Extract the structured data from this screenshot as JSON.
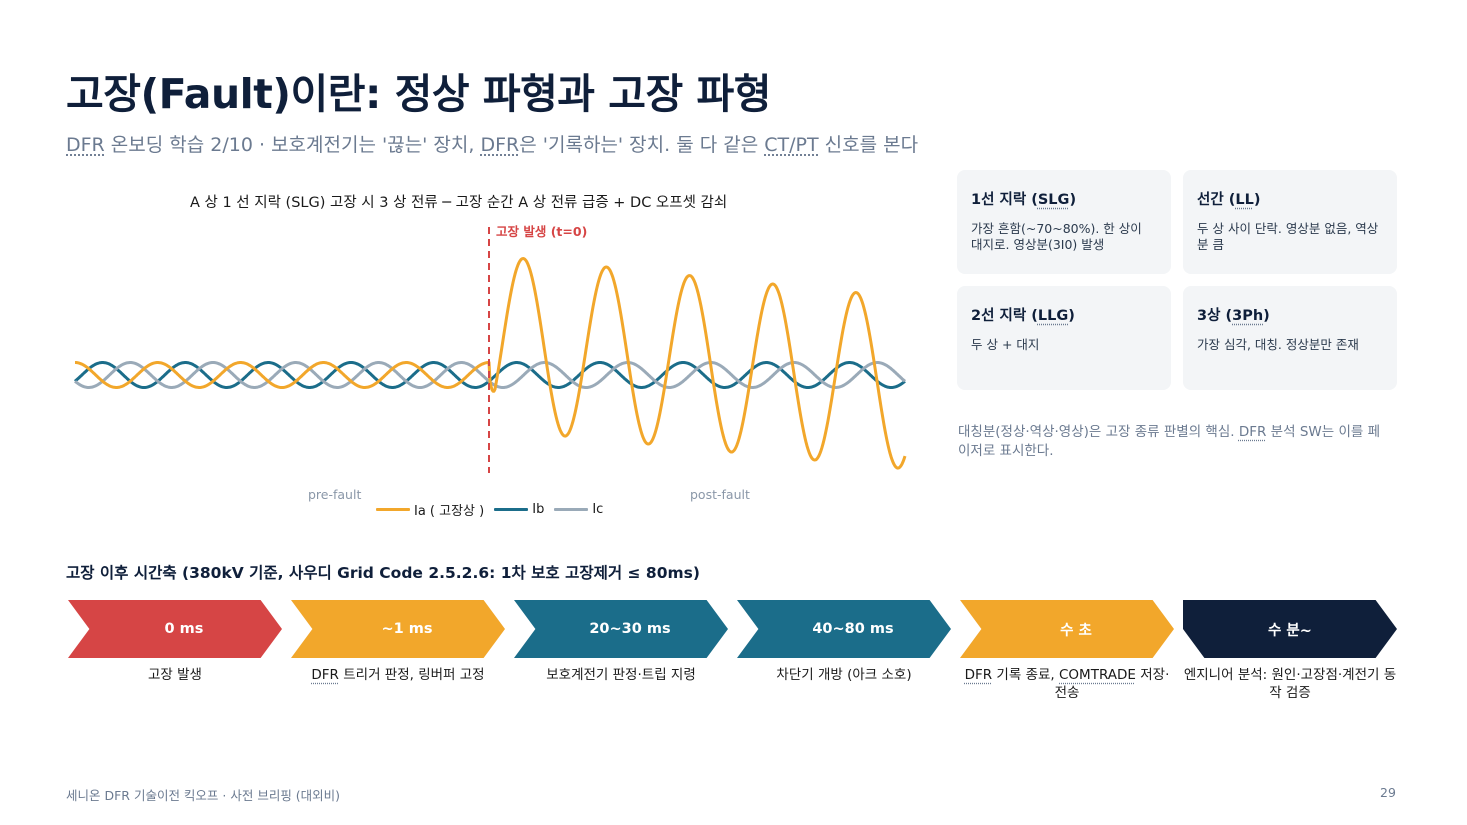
{
  "title": "고장(Fault)이란: 정상 파형과 고장 파형",
  "subtitle": {
    "dfr1": "DFR",
    "part1": " 온보딩 학습 2/10 · 보호계전기는 '끊는' 장치, ",
    "dfr2": "DFR",
    "part2": "은 '기록하는' 장치. 둘 다 같은 ",
    "ctpt": "CT/PT",
    "part3": " 신호를 본다"
  },
  "chart": {
    "title": "A 상  1 선 지락 (SLG)  고장 시  3 상 전류 ─ 고장 순간  A 상 전류 급증  + DC  오프셋 감쇠",
    "fault_label": "고장 발생 (t=0)",
    "pre_label": "pre-fault",
    "post_label": "post-fault",
    "legend": [
      "Ia ( 고장상 )",
      "Ib",
      "Ic"
    ]
  },
  "chart_data": {
    "type": "line",
    "title": "A 상  1 선 지락 (SLG)  고장 시  3 상 전류 ─ 고장 순간  A 상 전류 급증  + DC  오프셋 감쇠",
    "annotation": "고장 발생 (t=0)",
    "cycles_pre_fault": 5,
    "cycles_post_fault": 5,
    "series": [
      {
        "name": "Ia ( 고장상 )",
        "color": "#f2a72b",
        "pre_fault_amplitude": 1.0,
        "post_fault_peak_first": 9.6,
        "post_fault_peak_last": 6.2,
        "post_fault_trough_first": -4.3,
        "post_fault_trough_last": -7.5
      },
      {
        "name": "Ib",
        "color": "#1b6d8a",
        "pre_fault_amplitude": 1.0,
        "post_fault_amplitude": 1.0
      },
      {
        "name": "Ic",
        "color": "#9aaab8",
        "pre_fault_amplitude": 1.0,
        "post_fault_amplitude": 1.0
      }
    ]
  },
  "cards": [
    {
      "title_pre": "1선 지락 (",
      "title_abbr": "SLG",
      "title_post": ")",
      "desc": "가장 흔함(~70~80%). 한 상이 대지로. 영상분(3I0) 발생"
    },
    {
      "title_pre": "선간 (",
      "title_abbr": "LL",
      "title_post": ")",
      "desc": "두 상 사이 단락. 영상분 없음, 역상분 큼"
    },
    {
      "title_pre": "2선 지락 (",
      "title_abbr": "LLG",
      "title_post": ")",
      "desc": "두 상 + 대지"
    },
    {
      "title_pre": "3상 (",
      "title_abbr": "3Ph",
      "title_post": ")",
      "desc": "가장 심각, 대칭. 정상분만 존재"
    }
  ],
  "side_note": {
    "part1": "대칭분(정상·역상·영상)은 고장 종류 판별의 핵심. ",
    "dfr": "DFR",
    "part2": " 분석 SW는 이를 페이저로 표시한다."
  },
  "timeline": {
    "title": "고장 이후 시간축 (380kV 기준, 사우디 Grid Code 2.5.2.6: 1차 보호 고장제거 ≤ 80ms)",
    "steps": [
      {
        "label": "0 ms",
        "color": "#d64545",
        "desc_pre": "",
        "desc_abbr": "",
        "desc_mid": "고장 발생",
        "desc_abbr2": "",
        "desc_post": ""
      },
      {
        "label": "~1 ms",
        "color": "#f2a72b",
        "desc_pre": "",
        "desc_abbr": "DFR",
        "desc_mid": " 트리거 판정, 링버퍼 고정",
        "desc_abbr2": "",
        "desc_post": ""
      },
      {
        "label": "20~30 ms",
        "color": "#1b6d8a",
        "desc_pre": "",
        "desc_abbr": "",
        "desc_mid": "보호계전기 판정·트립 지령",
        "desc_abbr2": "",
        "desc_post": ""
      },
      {
        "label": "40~80 ms",
        "color": "#1b6d8a",
        "desc_pre": "",
        "desc_abbr": "",
        "desc_mid": "차단기 개방 (아크 소호)",
        "desc_abbr2": "",
        "desc_post": ""
      },
      {
        "label": "수 초",
        "color": "#f2a72b",
        "desc_pre": "",
        "desc_abbr": "DFR",
        "desc_mid": " 기록 종료, ",
        "desc_abbr2": "COMTRADE",
        "desc_post": " 저장·전송"
      },
      {
        "label": "수 분~",
        "color": "#0f1f3a",
        "desc_pre": "",
        "desc_abbr": "",
        "desc_mid": "엔지니어 분석: 원인·고장점·계전기 동작 검증",
        "desc_abbr2": "",
        "desc_post": ""
      }
    ]
  },
  "footer": {
    "left": "세니온 DFR 기술이전 킥오프 · 사전 브리핑 (대외비)",
    "page": "29"
  }
}
